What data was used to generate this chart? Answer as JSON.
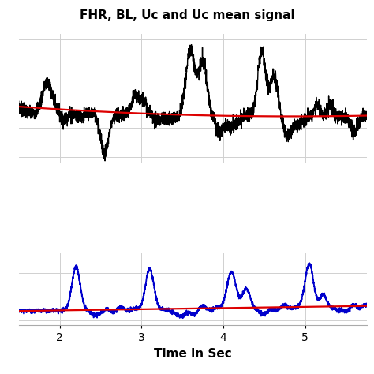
{
  "title": "FHR, BL, Uc and Uc mean signal",
  "xlabel": "Time in Sec",
  "title_fontsize": 11,
  "xlabel_fontsize": 11,
  "tick_fontsize": 10,
  "xlim": [
    1.5,
    5.75
  ],
  "fhr_color": "#000000",
  "bl_color": "#dd0000",
  "uc_color": "#0000cc",
  "uc_mean_color": "#dd0000",
  "background_color": "#ffffff",
  "grid_color": "#d0d0d0",
  "fhr_linewidth": 1.0,
  "bl_linewidth": 1.6,
  "uc_linewidth": 1.3,
  "uc_mean_linewidth": 1.6
}
